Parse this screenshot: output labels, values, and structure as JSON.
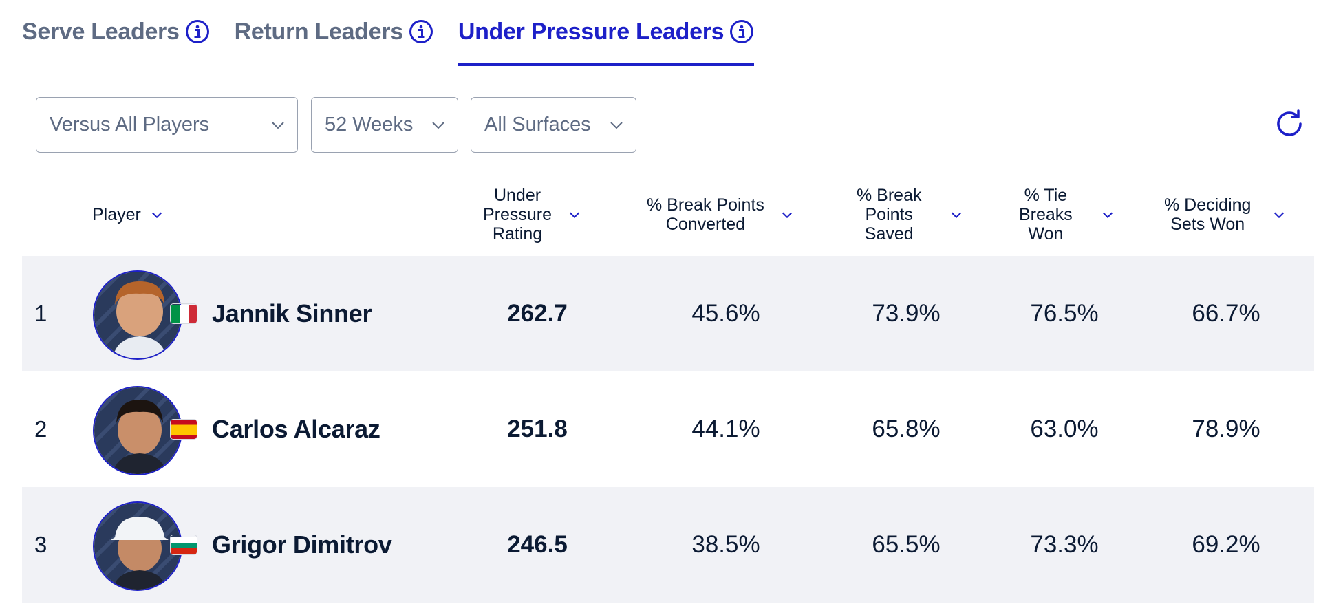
{
  "tabs": [
    {
      "label": "Serve Leaders",
      "active": false
    },
    {
      "label": "Return Leaders",
      "active": false
    },
    {
      "label": "Under Pressure Leaders",
      "active": true
    }
  ],
  "filters": {
    "opponent": "Versus All Players",
    "period": "52 Weeks",
    "surface": "All Surfaces"
  },
  "colors": {
    "accent": "#1d20c8",
    "muted": "#5e6b83",
    "row_shade": "#f1f2f6"
  },
  "table": {
    "headers": {
      "player": "Player",
      "rating": [
        "Under",
        "Pressure",
        "Rating"
      ],
      "bp_converted": [
        "% Break Points",
        "Converted"
      ],
      "bp_saved": [
        "% Break",
        "Points",
        "Saved"
      ],
      "tb_won": [
        "% Tie",
        "Breaks",
        "Won"
      ],
      "deciding": [
        "% Deciding",
        "Sets Won"
      ]
    },
    "rows": [
      {
        "rank": "1",
        "name": "Jannik Sinner",
        "flag": "italy-flag",
        "rating": "262.7",
        "bp_converted": "45.6%",
        "bp_saved": "73.9%",
        "tb_won": "76.5%",
        "deciding": "66.7%"
      },
      {
        "rank": "2",
        "name": "Carlos Alcaraz",
        "flag": "spain-flag",
        "rating": "251.8",
        "bp_converted": "44.1%",
        "bp_saved": "65.8%",
        "tb_won": "63.0%",
        "deciding": "78.9%"
      },
      {
        "rank": "3",
        "name": "Grigor Dimitrov",
        "flag": "bulgaria-flag",
        "rating": "246.5",
        "bp_converted": "38.5%",
        "bp_saved": "65.5%",
        "tb_won": "73.3%",
        "deciding": "69.2%"
      }
    ]
  }
}
